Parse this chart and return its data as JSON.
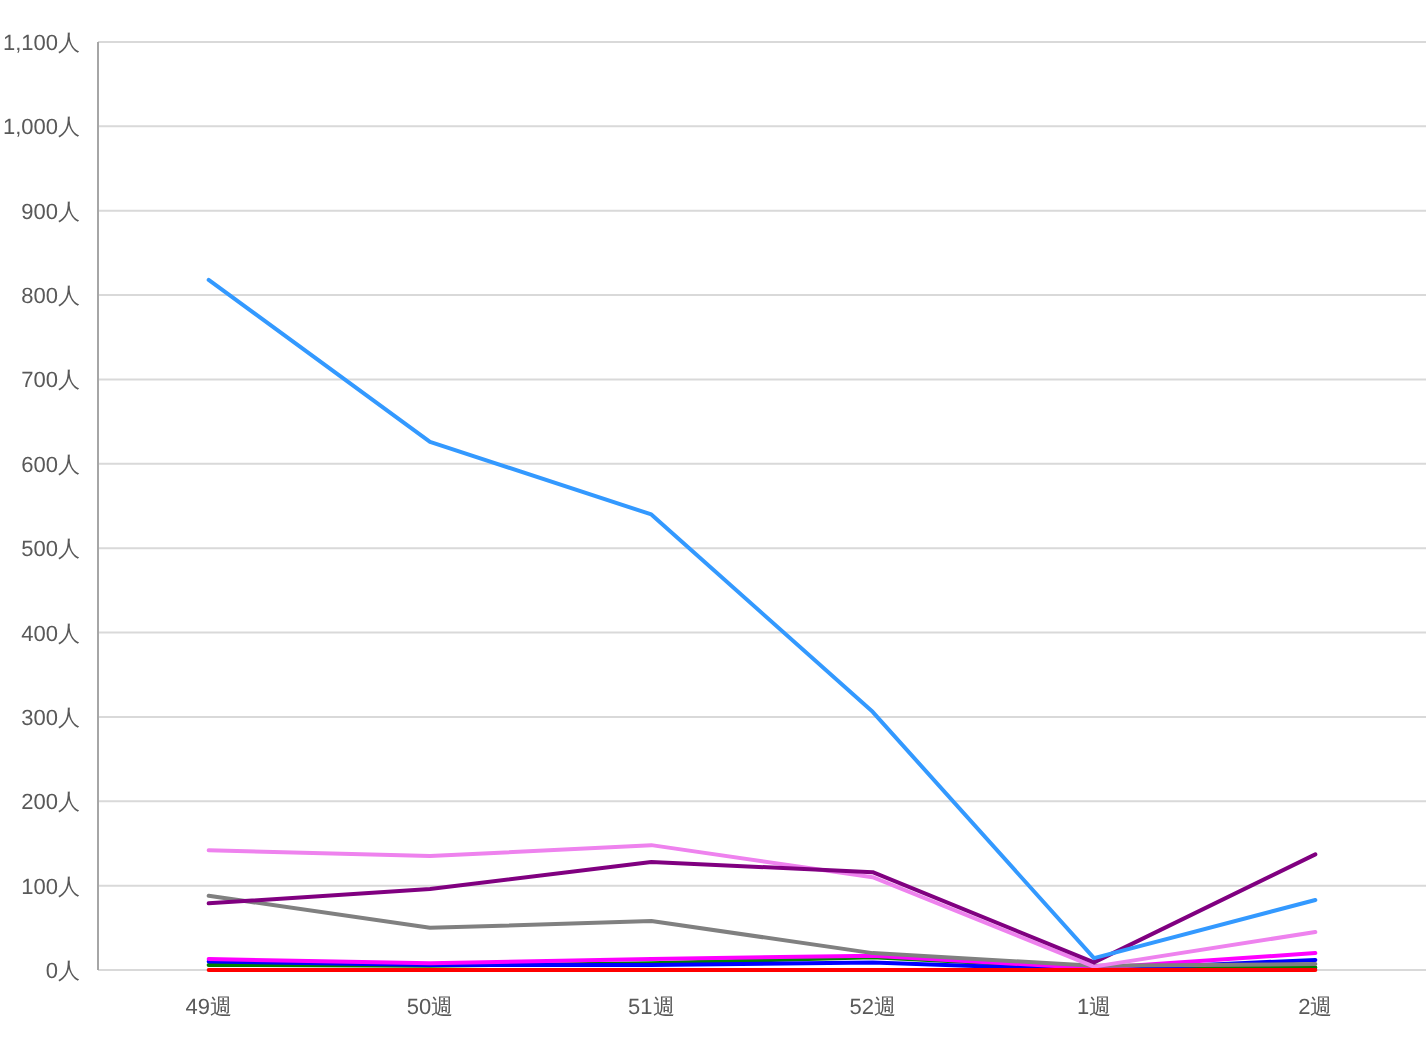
{
  "chart_data": {
    "type": "line",
    "categories": [
      "49週",
      "50週",
      "51週",
      "52週",
      "1週",
      "2週"
    ],
    "ylim": [
      0,
      1100
    ],
    "yticks": [
      {
        "value": 0,
        "label": "0人"
      },
      {
        "value": 100,
        "label": "100人"
      },
      {
        "value": 200,
        "label": "200人"
      },
      {
        "value": 300,
        "label": "300人"
      },
      {
        "value": 400,
        "label": "400人"
      },
      {
        "value": 500,
        "label": "500人"
      },
      {
        "value": 600,
        "label": "600人"
      },
      {
        "value": 700,
        "label": "700人"
      },
      {
        "value": 800,
        "label": "800人"
      },
      {
        "value": 900,
        "label": "900人"
      },
      {
        "value": 1000,
        "label": "1,000人"
      },
      {
        "value": 1100,
        "label": "1,100人"
      }
    ],
    "grid": "y",
    "marker": "none",
    "line_style": "solid",
    "series": [
      {
        "color": "#008000",
        "values": [
          6,
          5,
          8,
          15,
          2,
          3
        ]
      },
      {
        "color": "#0000ff",
        "values": [
          10,
          6,
          6,
          9,
          0,
          12
        ]
      },
      {
        "color": "#ff00ff",
        "values": [
          13,
          8,
          13,
          17,
          2,
          20
        ]
      },
      {
        "color": "#808080",
        "values": [
          88,
          50,
          58,
          20,
          5,
          7
        ]
      },
      {
        "color": "#ee82ee",
        "values": [
          142,
          135,
          148,
          110,
          4,
          45
        ]
      },
      {
        "color": "#800080",
        "values": [
          79,
          96,
          128,
          116,
          9,
          137
        ]
      },
      {
        "color": "#3399ff",
        "values": [
          818,
          626,
          540,
          306,
          14,
          83
        ]
      },
      {
        "color": "#ff0000",
        "values": [
          0,
          0,
          0,
          0,
          0,
          0
        ]
      }
    ]
  }
}
